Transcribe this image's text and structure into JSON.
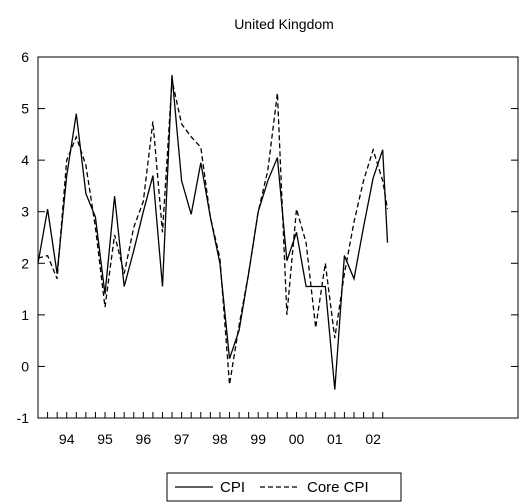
{
  "chart_data": {
    "type": "line",
    "title": "United Kingdom",
    "xlabel": "",
    "ylabel": "",
    "ylim": [
      -1,
      6
    ],
    "y_ticks": [
      "-1",
      "0",
      "1",
      "2",
      "3",
      "4",
      "5",
      "6"
    ],
    "x_tick_labels": [
      "94",
      "95",
      "96",
      "97",
      "98",
      "99",
      "00",
      "01",
      "02"
    ],
    "xlim": [
      1993.75,
      2002.75
    ],
    "grid": false,
    "legend_position": "bottom-center",
    "series": [
      {
        "name": "CPI",
        "line_style": "solid",
        "color": "#000000",
        "values": [
          {
            "x": 1993.75,
            "y": 2.0
          },
          {
            "x": 1994.0,
            "y": 3.05
          },
          {
            "x": 1994.25,
            "y": 1.8
          },
          {
            "x": 1994.5,
            "y": 3.7
          },
          {
            "x": 1994.75,
            "y": 4.9
          },
          {
            "x": 1995.0,
            "y": 3.35
          },
          {
            "x": 1995.25,
            "y": 2.9
          },
          {
            "x": 1995.5,
            "y": 1.4
          },
          {
            "x": 1995.75,
            "y": 3.3
          },
          {
            "x": 1996.0,
            "y": 1.55
          },
          {
            "x": 1996.25,
            "y": 2.25
          },
          {
            "x": 1996.5,
            "y": 3.0
          },
          {
            "x": 1996.75,
            "y": 3.7
          },
          {
            "x": 1997.0,
            "y": 1.55
          },
          {
            "x": 1997.25,
            "y": 5.65
          },
          {
            "x": 1997.5,
            "y": 3.6
          },
          {
            "x": 1997.75,
            "y": 2.95
          },
          {
            "x": 1998.0,
            "y": 3.95
          },
          {
            "x": 1998.25,
            "y": 2.9
          },
          {
            "x": 1998.5,
            "y": 2.0
          },
          {
            "x": 1998.75,
            "y": 0.15
          },
          {
            "x": 1999.0,
            "y": 0.7
          },
          {
            "x": 1999.25,
            "y": 1.8
          },
          {
            "x": 1999.5,
            "y": 3.0
          },
          {
            "x": 1999.75,
            "y": 3.6
          },
          {
            "x": 2000.0,
            "y": 4.05
          },
          {
            "x": 2000.25,
            "y": 2.05
          },
          {
            "x": 2000.5,
            "y": 2.6
          },
          {
            "x": 2000.75,
            "y": 1.55
          },
          {
            "x": 2001.0,
            "y": 1.55
          },
          {
            "x": 2001.25,
            "y": 1.55
          },
          {
            "x": 2001.5,
            "y": -0.45
          },
          {
            "x": 2001.75,
            "y": 2.15
          },
          {
            "x": 2002.0,
            "y": 1.7
          },
          {
            "x": 2002.25,
            "y": 2.7
          },
          {
            "x": 2002.5,
            "y": 3.65
          },
          {
            "x": 2002.75,
            "y": 4.2
          },
          {
            "x": 2002.875,
            "y": 2.4
          }
        ]
      },
      {
        "name": "Core CPI",
        "line_style": "dashed",
        "color": "#000000",
        "values": [
          {
            "x": 1993.75,
            "y": 2.1
          },
          {
            "x": 1994.0,
            "y": 2.15
          },
          {
            "x": 1994.25,
            "y": 1.7
          },
          {
            "x": 1994.5,
            "y": 4.0
          },
          {
            "x": 1994.75,
            "y": 4.45
          },
          {
            "x": 1995.0,
            "y": 3.9
          },
          {
            "x": 1995.25,
            "y": 2.7
          },
          {
            "x": 1995.5,
            "y": 1.15
          },
          {
            "x": 1995.75,
            "y": 2.55
          },
          {
            "x": 1996.0,
            "y": 1.8
          },
          {
            "x": 1996.25,
            "y": 2.7
          },
          {
            "x": 1996.5,
            "y": 3.2
          },
          {
            "x": 1996.75,
            "y": 4.75
          },
          {
            "x": 1997.0,
            "y": 2.6
          },
          {
            "x": 1997.25,
            "y": 5.55
          },
          {
            "x": 1997.5,
            "y": 4.7
          },
          {
            "x": 1997.75,
            "y": 4.45
          },
          {
            "x": 1998.0,
            "y": 4.25
          },
          {
            "x": 1998.25,
            "y": 2.9
          },
          {
            "x": 1998.5,
            "y": 2.1
          },
          {
            "x": 1998.75,
            "y": -0.35
          },
          {
            "x": 1999.0,
            "y": 0.8
          },
          {
            "x": 1999.25,
            "y": 1.8
          },
          {
            "x": 1999.5,
            "y": 3.0
          },
          {
            "x": 1999.75,
            "y": 3.8
          },
          {
            "x": 2000.0,
            "y": 5.3
          },
          {
            "x": 2000.25,
            "y": 1.0
          },
          {
            "x": 2000.5,
            "y": 3.05
          },
          {
            "x": 2000.75,
            "y": 2.4
          },
          {
            "x": 2001.0,
            "y": 0.75
          },
          {
            "x": 2001.25,
            "y": 2.0
          },
          {
            "x": 2001.5,
            "y": 0.55
          },
          {
            "x": 2001.75,
            "y": 1.8
          },
          {
            "x": 2002.0,
            "y": 2.8
          },
          {
            "x": 2002.25,
            "y": 3.6
          },
          {
            "x": 2002.5,
            "y": 4.2
          },
          {
            "x": 2002.75,
            "y": 3.6
          },
          {
            "x": 2002.875,
            "y": 3.05
          }
        ]
      }
    ]
  }
}
